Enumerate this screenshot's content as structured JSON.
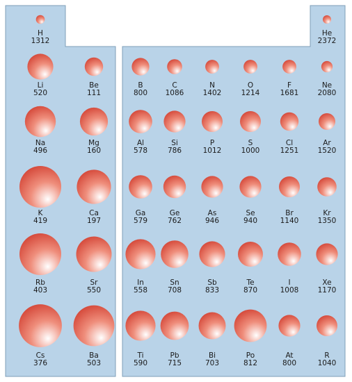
{
  "colors": {
    "panel": "#b9d3e8",
    "panel_edge": "#7f9fb8",
    "sphere_light": "#ffffff",
    "sphere_mid": "#ef8e7c",
    "sphere_dark": "#cf3a2c"
  },
  "left_block": [
    {
      "symbol": "H",
      "value": "1312",
      "size": 0.21
    },
    {
      "symbol": "Li",
      "value": "520",
      "size": 0.62
    },
    {
      "symbol": "Be",
      "value": "111",
      "size": 0.44
    },
    {
      "symbol": "Na",
      "value": "496",
      "size": 0.74
    },
    {
      "symbol": "Mg",
      "value": "160",
      "size": 0.67
    },
    {
      "symbol": "K",
      "value": "419",
      "size": 1.0
    },
    {
      "symbol": "Ca",
      "value": "197",
      "size": 0.82
    },
    {
      "symbol": "Rb",
      "value": "403",
      "size": 1.0
    },
    {
      "symbol": "Sr",
      "value": "550",
      "size": 0.85
    },
    {
      "symbol": "Cs",
      "value": "376",
      "size": 1.03
    },
    {
      "symbol": "Ba",
      "value": "503",
      "size": 0.98
    }
  ],
  "right_block": [
    {
      "symbol": "He",
      "value": "2372",
      "size": 0.2
    },
    {
      "symbol": "B",
      "value": "800",
      "size": 0.42
    },
    {
      "symbol": "C",
      "value": "1086",
      "size": 0.36
    },
    {
      "symbol": "N",
      "value": "1402",
      "size": 0.33
    },
    {
      "symbol": "O",
      "value": "1214",
      "size": 0.33
    },
    {
      "symbol": "F",
      "value": "1681",
      "size": 0.33
    },
    {
      "symbol": "Ne",
      "value": "2080",
      "size": 0.27
    },
    {
      "symbol": "Al",
      "value": "578",
      "size": 0.56
    },
    {
      "symbol": "Si",
      "value": "786",
      "size": 0.52
    },
    {
      "symbol": "P",
      "value": "1012",
      "size": 0.5
    },
    {
      "symbol": "S",
      "value": "1000",
      "size": 0.5
    },
    {
      "symbol": "Cl",
      "value": "1251",
      "size": 0.44
    },
    {
      "symbol": "Ar",
      "value": "1520",
      "size": 0.4
    },
    {
      "symbol": "Ga",
      "value": "579",
      "size": 0.56
    },
    {
      "symbol": "Ge",
      "value": "762",
      "size": 0.54
    },
    {
      "symbol": "As",
      "value": "946",
      "size": 0.52
    },
    {
      "symbol": "Se",
      "value": "940",
      "size": 0.52
    },
    {
      "symbol": "Br",
      "value": "1140",
      "size": 0.5
    },
    {
      "symbol": "Kr",
      "value": "1350",
      "size": 0.46
    },
    {
      "symbol": "In",
      "value": "558",
      "size": 0.72
    },
    {
      "symbol": "Sn",
      "value": "708",
      "size": 0.66
    },
    {
      "symbol": "Sb",
      "value": "833",
      "size": 0.62
    },
    {
      "symbol": "Te",
      "value": "870",
      "size": 0.6
    },
    {
      "symbol": "I",
      "value": "1008",
      "size": 0.56
    },
    {
      "symbol": "Xe",
      "value": "1170",
      "size": 0.52
    },
    {
      "symbol": "Ti",
      "value": "590",
      "size": 0.72
    },
    {
      "symbol": "Pb",
      "value": "715",
      "size": 0.68
    },
    {
      "symbol": "Bi",
      "value": "703",
      "size": 0.65
    },
    {
      "symbol": "Po",
      "value": "812",
      "size": 0.78
    },
    {
      "symbol": "At",
      "value": "800",
      "size": 0.52
    },
    {
      "symbol": "R",
      "value": "1040",
      "size": 0.5
    }
  ]
}
